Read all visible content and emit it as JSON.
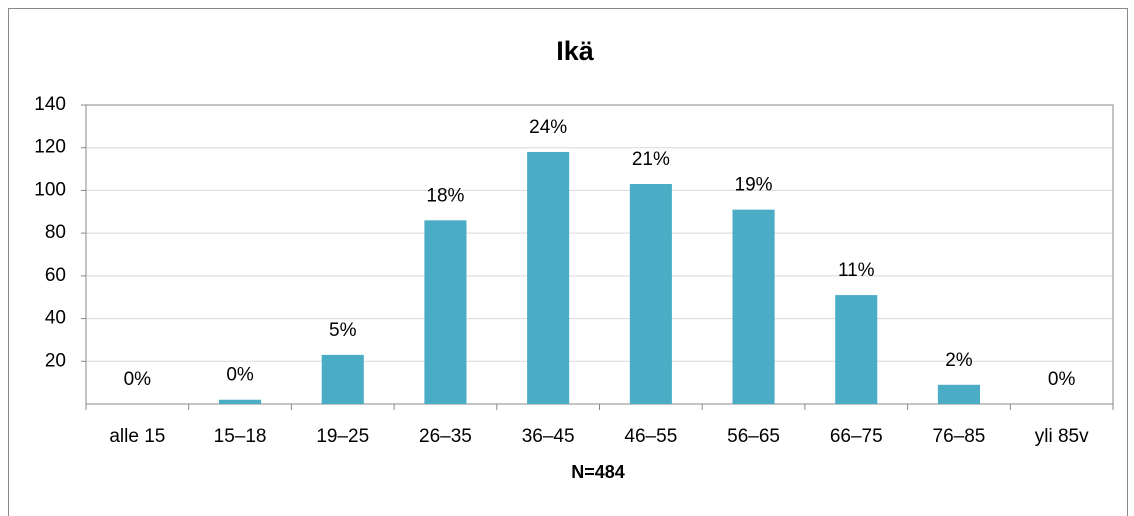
{
  "chart_data": {
    "type": "bar",
    "title": "Ikä",
    "x_label": "N=484",
    "categories": [
      "alle 15",
      "15–18",
      "19–25",
      "26–35",
      "36–45",
      "46–55",
      "56–65",
      "66–75",
      "76–85",
      "yli 85v"
    ],
    "values": [
      0,
      2,
      23,
      86,
      118,
      103,
      91,
      51,
      9,
      0
    ],
    "value_labels": [
      "0%",
      "0%",
      "5%",
      "18%",
      "24%",
      "21%",
      "19%",
      "11%",
      "2%",
      "0%"
    ],
    "color": "#4bacc6",
    "ylim": [
      0,
      140
    ],
    "yticks": [
      20,
      40,
      60,
      80,
      100,
      120,
      140
    ],
    "grid": true
  }
}
